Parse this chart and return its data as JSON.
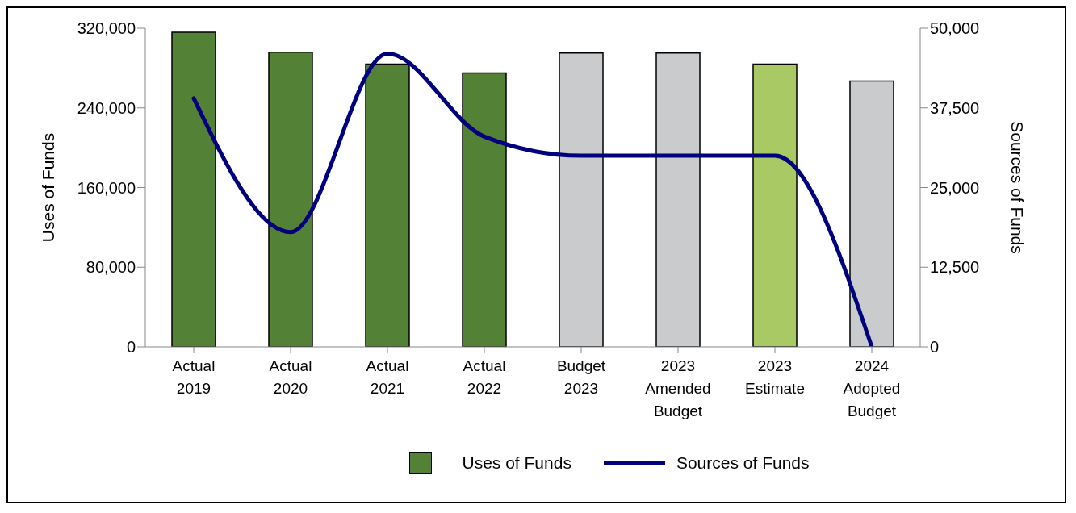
{
  "chart_data": {
    "type": "bar",
    "categories": [
      "Actual 2019",
      "Actual 2020",
      "Actual 2021",
      "Actual 2022",
      "Budget 2023",
      "2023 Amended Budget",
      "2023 Estimate",
      "2024 Adopted Budget"
    ],
    "series": [
      {
        "name": "Uses of Funds",
        "color": "#538135",
        "colors": [
          "#538135",
          "#538135",
          "#538135",
          "#538135",
          "#c9cbcc",
          "#c9cbcc",
          "#a9c964",
          "#c9cbcc"
        ],
        "values": [
          316000,
          296000,
          284000,
          275000,
          295000,
          295000,
          284000,
          267000
        ]
      },
      {
        "name": "Sources of Funds",
        "type": "line",
        "axis": "y2",
        "color": "#00007f",
        "values": [
          39000,
          18000,
          46000,
          33000,
          30000,
          30000,
          30000,
          0
        ]
      }
    ],
    "ylabel": "Uses of Funds",
    "y2label": "Sources of Funds",
    "ylim": [
      0,
      320000
    ],
    "yticks": [
      {
        "value": 0,
        "label": "0"
      },
      {
        "value": 80000,
        "label": "80,000"
      },
      {
        "value": 160000,
        "label": "160,000"
      },
      {
        "value": 240000,
        "label": "240,000"
      },
      {
        "value": 320000,
        "label": "320,000"
      }
    ],
    "y2lim": [
      0,
      50000
    ],
    "y2ticks": [
      {
        "value": 0,
        "label": "0"
      },
      {
        "value": 12500,
        "label": "12,500"
      },
      {
        "value": 25000,
        "label": "25,000"
      },
      {
        "value": 37500,
        "label": "37,500"
      },
      {
        "value": 50000,
        "label": "50,000"
      }
    ],
    "grid": false,
    "legend": "bottom",
    "marker": "none",
    "line_style": "solid"
  }
}
